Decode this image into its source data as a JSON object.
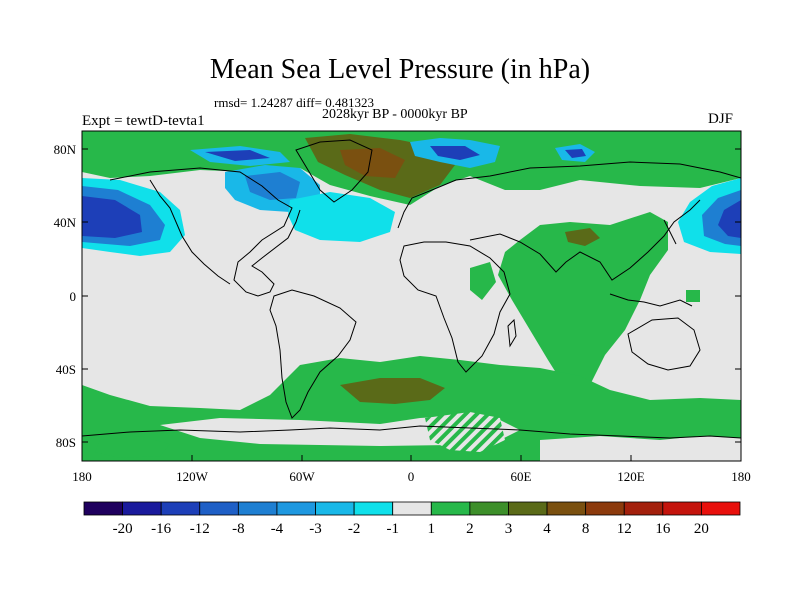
{
  "title": "Mean Sea Level Pressure (in hPa)",
  "stats": "rmsd= 1.24287 diff= 0.481323",
  "period": "2028kyr BP - 0000kyr BP",
  "experiment": "Expt = tewtD-tevta1",
  "season": "DJF",
  "latitude_labels": [
    "80N",
    "40N",
    "0",
    "40S",
    "80S"
  ],
  "longitude_labels": [
    "180",
    "120W",
    "60W",
    "0",
    "60E",
    "120E",
    "180"
  ],
  "colorbar": {
    "labels": [
      "-20",
      "-16",
      "-12",
      "-8",
      "-4",
      "-3",
      "-2",
      "-1",
      "1",
      "2",
      "3",
      "4",
      "8",
      "12",
      "16",
      "20"
    ],
    "colors": [
      "#1f005e",
      "#1a1a9c",
      "#1d3fb8",
      "#1e5fc6",
      "#1e7fd2",
      "#1e98e0",
      "#19b8e8",
      "#10e0ea",
      "#e6e6e6",
      "#27b84a",
      "#3d8f2a",
      "#5a6a18",
      "#7a5010",
      "#8c3a0c",
      "#a3200c",
      "#c4140c",
      "#e8100c"
    ]
  },
  "colors": {
    "land_outline": "#000000",
    "neutral": "#e6e6e6",
    "positive_light": "#27b84a",
    "positive_mid": "#5a6a18",
    "negative_light": "#10e0ea",
    "negative_mid": "#19b8e8",
    "negative_dark": "#1d3fb8"
  }
}
